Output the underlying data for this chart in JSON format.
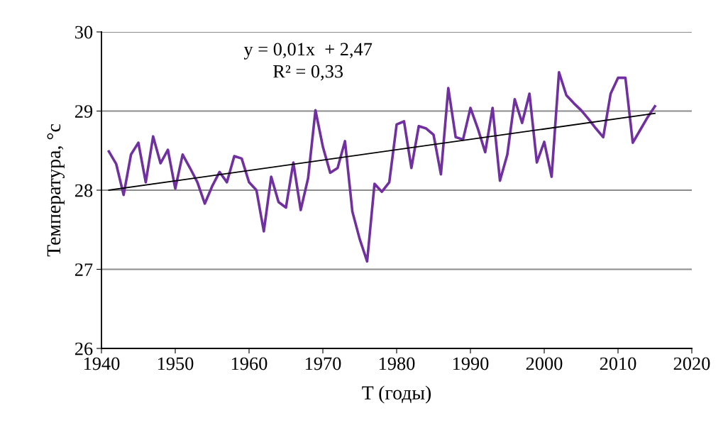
{
  "chart_data": {
    "type": "line",
    "xlabel": "T (годы)",
    "ylabel": "Температура, °c",
    "annotations": [
      "y = 0,01x  + 2,47",
      "R² = 0,33"
    ],
    "xlim": [
      1940,
      2020
    ],
    "xticks": [
      1940,
      1950,
      1960,
      1970,
      1980,
      1990,
      2000,
      2010,
      2020
    ],
    "ylim": [
      26,
      30
    ],
    "yticks": [
      26,
      27,
      28,
      29,
      30
    ],
    "grid": "y",
    "marker": "none",
    "line_style": "solid",
    "series": [
      {
        "color": "#7030a0",
        "x": [
          1941,
          1942,
          1943,
          1944,
          1945,
          1946,
          1947,
          1948,
          1949,
          1950,
          1951,
          1952,
          1953,
          1954,
          1955,
          1956,
          1957,
          1958,
          1959,
          1960,
          1961,
          1962,
          1963,
          1964,
          1965,
          1966,
          1967,
          1968,
          1969,
          1970,
          1971,
          1972,
          1973,
          1974,
          1975,
          1976,
          1977,
          1978,
          1979,
          1980,
          1981,
          1982,
          1983,
          1984,
          1985,
          1986,
          1987,
          1988,
          1989,
          1990,
          1991,
          1992,
          1993,
          1994,
          1995,
          1996,
          1997,
          1998,
          1999,
          2000,
          2001,
          2002,
          2003,
          2004,
          2005,
          2006,
          2007,
          2008,
          2009,
          2010,
          2011,
          2012,
          2013,
          2014,
          2015
        ],
        "values": [
          28.49,
          28.33,
          27.94,
          28.45,
          28.6,
          28.1,
          28.68,
          28.34,
          28.51,
          28.02,
          28.45,
          28.28,
          28.1,
          27.83,
          28.05,
          28.23,
          28.1,
          28.43,
          28.4,
          28.1,
          28.0,
          27.48,
          28.17,
          27.85,
          27.78,
          28.35,
          27.75,
          28.15,
          29.01,
          28.55,
          28.22,
          28.28,
          28.62,
          27.73,
          27.38,
          27.1,
          28.08,
          27.98,
          28.1,
          28.83,
          28.87,
          28.28,
          28.81,
          28.78,
          28.7,
          28.2,
          29.29,
          28.67,
          28.64,
          29.04,
          28.78,
          28.48,
          29.04,
          28.12,
          28.45,
          29.15,
          28.85,
          29.22,
          28.35,
          28.61,
          28.17,
          29.49,
          29.2,
          29.1,
          29.01,
          28.9,
          28.78,
          28.67,
          29.22,
          29.42,
          29.42,
          28.6,
          28.76,
          28.92,
          29.06
        ]
      },
      {
        "type": "line",
        "color": "#000000",
        "x": [
          1941,
          2015
        ],
        "values": [
          28.0,
          28.97
        ]
      }
    ]
  }
}
